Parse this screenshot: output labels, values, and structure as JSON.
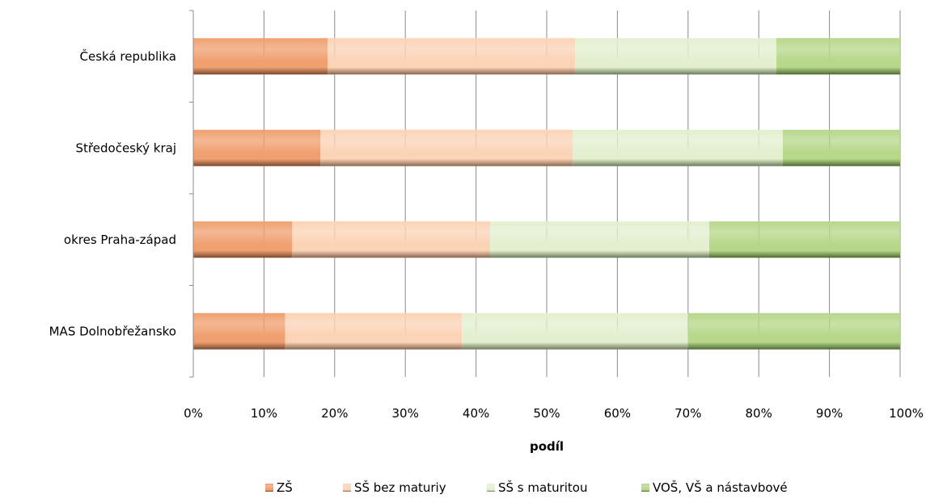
{
  "chart_data": {
    "type": "bar",
    "orientation": "horizontal",
    "stacked": "percent",
    "categories": [
      "Česká republika",
      "Středočeský kraj",
      "okres Praha-západ",
      "MAS Dolnobřežansko"
    ],
    "series": [
      {
        "name": "ZŠ",
        "values": [
          19.0,
          18.0,
          14.0,
          13.0
        ],
        "color": "#f0a070",
        "dark": "#7a4a2e"
      },
      {
        "name": "SŠ bez maturiy",
        "values": [
          35.0,
          35.7,
          28.0,
          25.0
        ],
        "color": "#fbd3b6",
        "dark": "#8a6650"
      },
      {
        "name": "SŠ s maturitou",
        "values": [
          28.5,
          29.7,
          31.0,
          32.0
        ],
        "color": "#e3efcf",
        "dark": "#6d7a5a"
      },
      {
        "name": "VOŠ, VŠ a nástavbové",
        "values": [
          17.5,
          16.6,
          27.0,
          30.0
        ],
        "color": "#b7d78a",
        "dark": "#4f6a33"
      }
    ],
    "xlim": [
      0,
      100
    ],
    "x_ticks": [
      "0%",
      "10%",
      "20%",
      "30%",
      "40%",
      "50%",
      "60%",
      "70%",
      "80%",
      "90%",
      "100%"
    ],
    "xlabel": "podíl",
    "ylabel": "",
    "title": "",
    "grid": "vertical",
    "legend_position": "bottom"
  }
}
